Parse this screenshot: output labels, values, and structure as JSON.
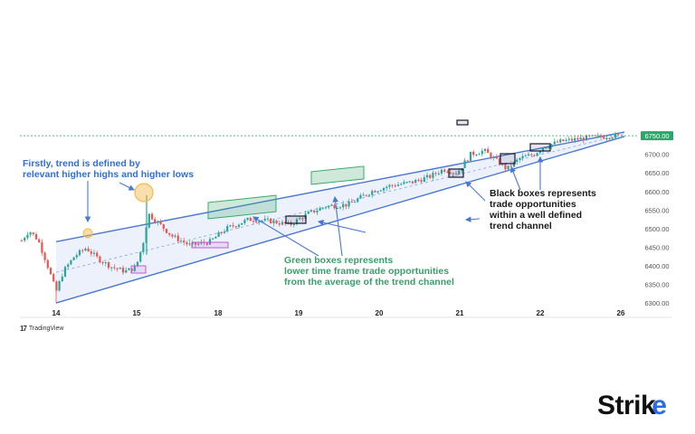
{
  "chart_data": {
    "type": "candlestick",
    "x_tick_labels": [
      "14",
      "15",
      "18",
      "19",
      "20",
      "21",
      "22",
      "26"
    ],
    "y_ticks": [
      "6750.00",
      "6700.00",
      "6650.00",
      "6600.00",
      "6550.00",
      "6500.00",
      "6450.00",
      "6400.00",
      "6350.00",
      "6300.00"
    ],
    "y_tick_values": [
      6750,
      6700,
      6650,
      6600,
      6550,
      6500,
      6450,
      6400,
      6350,
      6300
    ],
    "ylim": [
      6288,
      6782
    ],
    "last_price": 6750,
    "channel": {
      "upper": {
        "start": 6465,
        "end": 6760
      },
      "lower": {
        "start": 6300,
        "end": 6748
      }
    },
    "annotations": {
      "trend_note": [
        "Firstly, trend is defined by",
        "relevant higher highs and higher lows"
      ],
      "green_note": [
        "Green boxes represents",
        "lower time frame trade opportunities",
        "from the average of the trend channel"
      ],
      "black_note": [
        "Black boxes represents",
        "trade opportunities",
        "within a well defined",
        "trend channel"
      ]
    },
    "colors": {
      "up": "#26a69a",
      "down": "#ef5350",
      "channel": "#4a78d0",
      "channel_fill": "#e8eefb",
      "blue_text": "#2f6fd8",
      "green_text": "#3a9e6c",
      "purple_box": "#c05ad6",
      "green_box": "#3aa96a",
      "highlight_circle": "#f5b94a"
    }
  },
  "watermark": "TradingView",
  "brand": {
    "text": "Strik",
    "arrow": "e"
  }
}
